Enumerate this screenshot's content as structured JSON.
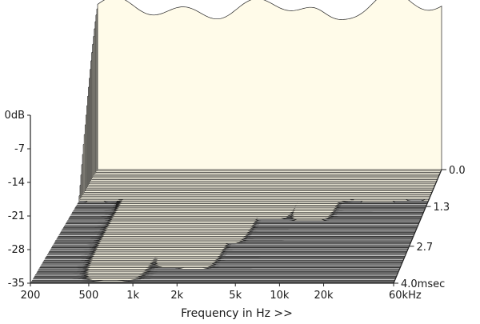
{
  "chart_data": {
    "type": "waterfall",
    "title": "",
    "xlabel": "Frequency in Hz >>",
    "ylabel": "",
    "zlabel": "",
    "x_scale": "log",
    "x_ticks": [
      "200",
      "500",
      "1k",
      "2k",
      "5k",
      "10k",
      "20k",
      "60kHz"
    ],
    "x_tick_values": [
      200,
      500,
      1000,
      2000,
      5000,
      10000,
      20000,
      60000
    ],
    "xlim": [
      200,
      60000
    ],
    "y_ticks": [
      "0dB",
      "-7",
      "-14",
      "-21",
      "-28",
      "-35"
    ],
    "y_tick_values": [
      0,
      -7,
      -14,
      -21,
      -28,
      -35
    ],
    "ylim": [
      -35,
      0
    ],
    "z_ticks": [
      "0.0",
      "1.3",
      "2.7",
      "4.0msec"
    ],
    "z_tick_values": [
      0.0,
      1.3,
      2.7,
      4.0
    ],
    "zlim": [
      0.0,
      4.0
    ],
    "slice_count": 80,
    "decay_resonances": [
      {
        "freq": 700,
        "sustain_ms": 4.0
      },
      {
        "freq": 1000,
        "sustain_ms": 3.2
      },
      {
        "freq": 1600,
        "sustain_ms": 3.6
      },
      {
        "freq": 2300,
        "sustain_ms": 3.5
      },
      {
        "freq": 3000,
        "sustain_ms": 2.6
      },
      {
        "freq": 5200,
        "sustain_ms": 1.8
      },
      {
        "freq": 10000,
        "sustain_ms": 1.9
      },
      {
        "freq": 13000,
        "sustain_ms": 1.2
      },
      {
        "freq": 20000,
        "sustain_ms": 1.0
      }
    ],
    "colors": {
      "surface_fill": "#fffbe9",
      "contour_line": "#222222",
      "floor_stripe_dark": "#777777",
      "floor_stripe_light": "#c4c4c4"
    }
  }
}
